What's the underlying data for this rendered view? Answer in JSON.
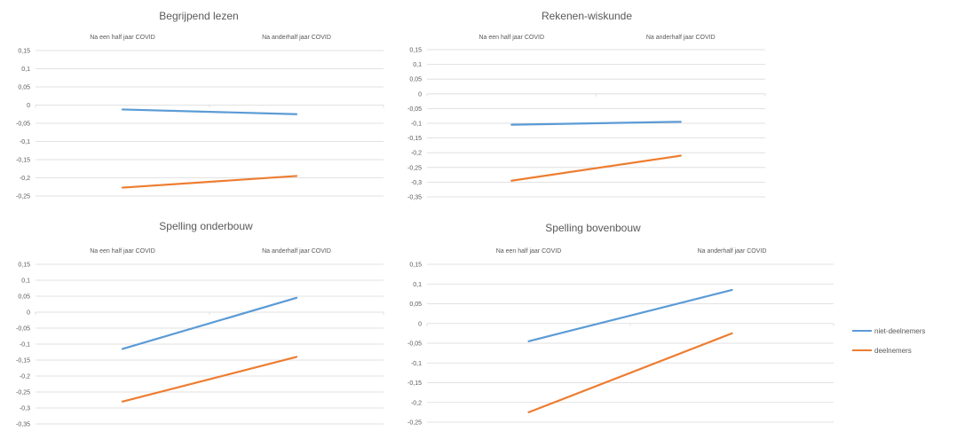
{
  "chart_data": [
    {
      "type": "line",
      "title": "Begrijpend lezen",
      "categories": [
        "Na een half jaar COVID",
        "Na anderhalf jaar COVID"
      ],
      "yticks": [
        "0,15",
        "0,1",
        "0,05",
        "0",
        "-0,05",
        "-0,1",
        "-0,15",
        "-0,2",
        "-0,25"
      ],
      "ylim": [
        -0.25,
        0.15
      ],
      "series": [
        {
          "name": "niet-deelnemers",
          "values": [
            -0.012,
            -0.025
          ]
        },
        {
          "name": "deelnemers",
          "values": [
            -0.227,
            -0.195
          ]
        }
      ]
    },
    {
      "type": "line",
      "title": "Rekenen-wiskunde",
      "categories": [
        "Na een half jaar COVID",
        "Na anderhalf jaar COVID"
      ],
      "yticks": [
        "0,15",
        "0,1",
        "0,05",
        "0",
        "-0,05",
        "-0,1",
        "-0,15",
        "-0,2",
        "-0,25",
        "-0,3",
        "-0,35"
      ],
      "ylim": [
        -0.35,
        0.15
      ],
      "series": [
        {
          "name": "niet-deelnemers",
          "values": [
            -0.105,
            -0.095
          ]
        },
        {
          "name": "deelnemers",
          "values": [
            -0.295,
            -0.21
          ]
        }
      ]
    },
    {
      "type": "line",
      "title": "Spelling onderbouw",
      "categories": [
        "Na een half jaar COVID",
        "Na anderhalf jaar COVID"
      ],
      "yticks": [
        "0,15",
        "0,1",
        "0,05",
        "0",
        "-0,05",
        "-0,1",
        "-0,15",
        "-0,2",
        "-0,25",
        "-0,3",
        "-0,35"
      ],
      "ylim": [
        -0.35,
        0.15
      ],
      "series": [
        {
          "name": "niet-deelnemers",
          "values": [
            -0.115,
            0.045
          ]
        },
        {
          "name": "deelnemers",
          "values": [
            -0.28,
            -0.14
          ]
        }
      ]
    },
    {
      "type": "line",
      "title": "Spelling bovenbouw",
      "categories": [
        "Na een half jaar COVID",
        "Na anderhalf jaar COVID"
      ],
      "yticks": [
        "0,15",
        "0,1",
        "0,05",
        "0",
        "-0,05",
        "-0,1",
        "-0,15",
        "-0,2",
        "-0,25"
      ],
      "ylim": [
        -0.25,
        0.15
      ],
      "series": [
        {
          "name": "niet-deelnemers",
          "values": [
            -0.045,
            0.085
          ]
        },
        {
          "name": "deelnemers",
          "values": [
            -0.225,
            -0.025
          ]
        }
      ]
    }
  ],
  "legend": {
    "items": [
      {
        "label": "niet-deelnemers",
        "color": "#5b9bd5"
      },
      {
        "label": "deelnemers",
        "color": "#ed7d31"
      }
    ]
  },
  "colors": {
    "series": [
      "#5b9bd5",
      "#ed7d31"
    ],
    "grid": "#d9d9d9",
    "text": "#595959"
  }
}
